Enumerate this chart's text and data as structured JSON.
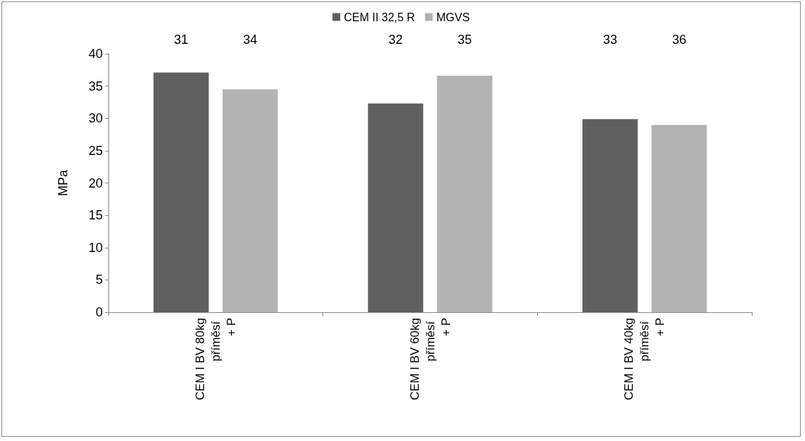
{
  "chart_data": {
    "type": "bar",
    "ylabel": "MPa",
    "categories": [
      "CEM I BV 80kg příměsí + P",
      "CEM I BV 60kg příměsí + P",
      "CEM I BV 40kg příměsí + P"
    ],
    "series": [
      {
        "name": "CEM II 32,5 R",
        "color": "#606060",
        "values": [
          37.1,
          32.3,
          29.9
        ]
      },
      {
        "name": "MGVS",
        "color": "#b3b3b3",
        "values": [
          34.5,
          36.6,
          29.0
        ]
      }
    ],
    "annotations": [
      "31",
      "34",
      "32",
      "35",
      "33",
      "36"
    ],
    "ylim": [
      0,
      40
    ],
    "yticks": [
      0,
      5,
      10,
      15,
      20,
      25,
      30,
      35,
      40
    ],
    "grid": false,
    "legend": "top"
  }
}
